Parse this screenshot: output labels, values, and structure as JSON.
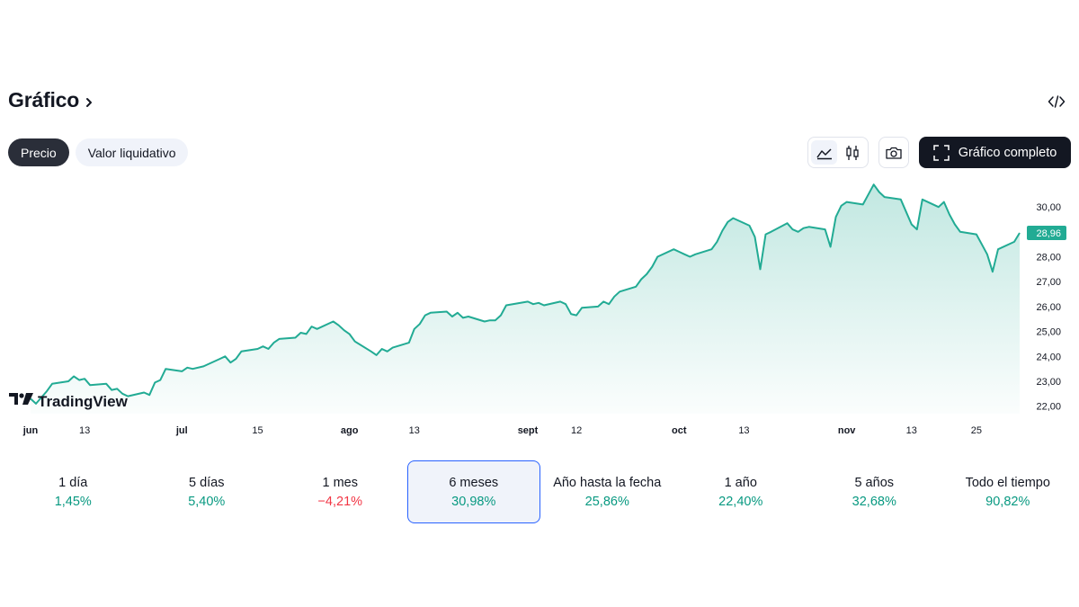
{
  "header": {
    "title": "Gráfico",
    "embed_icon": "code-icon"
  },
  "tabs": [
    {
      "label": "Precio",
      "active": true
    },
    {
      "label": "Valor liquidativo",
      "active": false
    }
  ],
  "toolbar": {
    "chart_styles": [
      "area-chart-icon",
      "candles-icon"
    ],
    "snapshot_icon": "camera-icon",
    "fullscreen_label": "Gráfico completo"
  },
  "chart_data": {
    "type": "area",
    "series_color": "#22ab94",
    "last_value": 28.96,
    "last_value_label": "28,96",
    "watermark": "TradingView",
    "ylim": [
      21.7,
      30.8
    ],
    "y_ticks": [
      {
        "value": 22,
        "label": "22,00"
      },
      {
        "value": 23,
        "label": "23,00"
      },
      {
        "value": 24,
        "label": "24,00"
      },
      {
        "value": 25,
        "label": "25,00"
      },
      {
        "value": 26,
        "label": "26,00"
      },
      {
        "value": 27,
        "label": "27,00"
      },
      {
        "value": 28,
        "label": "28,00"
      },
      {
        "value": 30,
        "label": "30,00"
      }
    ],
    "x_ticks": [
      {
        "date": "2024-06-03",
        "label": "jun",
        "month": true
      },
      {
        "date": "2024-06-13",
        "label": "13",
        "month": false
      },
      {
        "date": "2024-07-01",
        "label": "jul",
        "month": true
      },
      {
        "date": "2024-07-15",
        "label": "15",
        "month": false
      },
      {
        "date": "2024-08-01",
        "label": "ago",
        "month": true
      },
      {
        "date": "2024-08-13",
        "label": "13",
        "month": false
      },
      {
        "date": "2024-09-03",
        "label": "sept",
        "month": true
      },
      {
        "date": "2024-09-12",
        "label": "12",
        "month": false
      },
      {
        "date": "2024-10-01",
        "label": "oct",
        "month": true
      },
      {
        "date": "2024-10-13",
        "label": "13",
        "month": false
      },
      {
        "date": "2024-11-01",
        "label": "nov",
        "month": true
      },
      {
        "date": "2024-11-13",
        "label": "13",
        "month": false
      },
      {
        "date": "2024-11-25",
        "label": "25",
        "month": false
      }
    ],
    "series": [
      {
        "values": [
          [
            "2024-06-03",
            22.3
          ],
          [
            "2024-06-04",
            22.1
          ],
          [
            "2024-06-05",
            22.35
          ],
          [
            "2024-06-06",
            22.6
          ],
          [
            "2024-06-07",
            22.9
          ],
          [
            "2024-06-10",
            23.0
          ],
          [
            "2024-06-11",
            23.2
          ],
          [
            "2024-06-12",
            23.05
          ],
          [
            "2024-06-13",
            23.1
          ],
          [
            "2024-06-14",
            22.85
          ],
          [
            "2024-06-17",
            22.9
          ],
          [
            "2024-06-18",
            22.65
          ],
          [
            "2024-06-19",
            22.7
          ],
          [
            "2024-06-20",
            22.5
          ],
          [
            "2024-06-21",
            22.4
          ],
          [
            "2024-06-24",
            22.55
          ],
          [
            "2024-06-25",
            22.45
          ],
          [
            "2024-06-26",
            22.95
          ],
          [
            "2024-06-27",
            23.05
          ],
          [
            "2024-06-28",
            23.5
          ],
          [
            "2024-07-01",
            23.4
          ],
          [
            "2024-07-02",
            23.55
          ],
          [
            "2024-07-03",
            23.5
          ],
          [
            "2024-07-05",
            23.6
          ],
          [
            "2024-07-08",
            23.9
          ],
          [
            "2024-07-09",
            24.0
          ],
          [
            "2024-07-10",
            23.75
          ],
          [
            "2024-07-11",
            23.9
          ],
          [
            "2024-07-12",
            24.2
          ],
          [
            "2024-07-15",
            24.3
          ],
          [
            "2024-07-16",
            24.4
          ],
          [
            "2024-07-17",
            24.3
          ],
          [
            "2024-07-18",
            24.55
          ],
          [
            "2024-07-19",
            24.7
          ],
          [
            "2024-07-22",
            24.75
          ],
          [
            "2024-07-23",
            24.95
          ],
          [
            "2024-07-24",
            24.9
          ],
          [
            "2024-07-25",
            25.2
          ],
          [
            "2024-07-26",
            25.1
          ],
          [
            "2024-07-29",
            25.4
          ],
          [
            "2024-07-30",
            25.25
          ],
          [
            "2024-07-31",
            25.05
          ],
          [
            "2024-08-01",
            24.9
          ],
          [
            "2024-08-02",
            24.6
          ],
          [
            "2024-08-05",
            24.2
          ],
          [
            "2024-08-06",
            24.05
          ],
          [
            "2024-08-07",
            24.3
          ],
          [
            "2024-08-08",
            24.2
          ],
          [
            "2024-08-09",
            24.35
          ],
          [
            "2024-08-12",
            24.55
          ],
          [
            "2024-08-13",
            25.1
          ],
          [
            "2024-08-14",
            25.3
          ],
          [
            "2024-08-15",
            25.65
          ],
          [
            "2024-08-16",
            25.75
          ],
          [
            "2024-08-19",
            25.8
          ],
          [
            "2024-08-20",
            25.6
          ],
          [
            "2024-08-21",
            25.75
          ],
          [
            "2024-08-22",
            25.55
          ],
          [
            "2024-08-23",
            25.6
          ],
          [
            "2024-08-26",
            25.4
          ],
          [
            "2024-08-27",
            25.45
          ],
          [
            "2024-08-28",
            25.45
          ],
          [
            "2024-08-29",
            25.65
          ],
          [
            "2024-08-30",
            26.05
          ],
          [
            "2024-09-03",
            26.2
          ],
          [
            "2024-09-04",
            26.1
          ],
          [
            "2024-09-05",
            26.15
          ],
          [
            "2024-09-06",
            26.05
          ],
          [
            "2024-09-09",
            26.2
          ],
          [
            "2024-09-10",
            26.1
          ],
          [
            "2024-09-11",
            25.7
          ],
          [
            "2024-09-12",
            25.65
          ],
          [
            "2024-09-13",
            25.95
          ],
          [
            "2024-09-16",
            26.0
          ],
          [
            "2024-09-17",
            26.2
          ],
          [
            "2024-09-18",
            26.1
          ],
          [
            "2024-09-19",
            26.4
          ],
          [
            "2024-09-20",
            26.6
          ],
          [
            "2024-09-23",
            26.8
          ],
          [
            "2024-09-24",
            27.1
          ],
          [
            "2024-09-25",
            27.3
          ],
          [
            "2024-09-26",
            27.6
          ],
          [
            "2024-09-27",
            28.0
          ],
          [
            "2024-09-30",
            28.3
          ],
          [
            "2024-10-01",
            28.2
          ],
          [
            "2024-10-02",
            28.1
          ],
          [
            "2024-10-03",
            28.0
          ],
          [
            "2024-10-04",
            28.1
          ],
          [
            "2024-10-07",
            28.3
          ],
          [
            "2024-10-08",
            28.6
          ],
          [
            "2024-10-09",
            29.05
          ],
          [
            "2024-10-10",
            29.4
          ],
          [
            "2024-10-11",
            29.55
          ],
          [
            "2024-10-14",
            29.25
          ],
          [
            "2024-10-15",
            28.8
          ],
          [
            "2024-10-16",
            27.5
          ],
          [
            "2024-10-17",
            28.9
          ],
          [
            "2024-10-18",
            29.0
          ],
          [
            "2024-10-21",
            29.35
          ],
          [
            "2024-10-22",
            29.1
          ],
          [
            "2024-10-23",
            29.0
          ],
          [
            "2024-10-24",
            29.15
          ],
          [
            "2024-10-25",
            29.2
          ],
          [
            "2024-10-28",
            29.1
          ],
          [
            "2024-10-29",
            28.4
          ],
          [
            "2024-10-30",
            29.6
          ],
          [
            "2024-10-31",
            30.05
          ],
          [
            "2024-11-01",
            30.2
          ],
          [
            "2024-11-04",
            30.1
          ],
          [
            "2024-11-05",
            30.5
          ],
          [
            "2024-11-06",
            30.9
          ],
          [
            "2024-11-07",
            30.6
          ],
          [
            "2024-11-08",
            30.4
          ],
          [
            "2024-11-11",
            30.3
          ],
          [
            "2024-11-12",
            29.8
          ],
          [
            "2024-11-13",
            29.3
          ],
          [
            "2024-11-14",
            29.1
          ],
          [
            "2024-11-15",
            30.3
          ],
          [
            "2024-11-18",
            30.0
          ],
          [
            "2024-11-19",
            30.2
          ],
          [
            "2024-11-20",
            29.7
          ],
          [
            "2024-11-21",
            29.3
          ],
          [
            "2024-11-22",
            29.0
          ],
          [
            "2024-11-25",
            28.9
          ],
          [
            "2024-11-26",
            28.5
          ],
          [
            "2024-11-27",
            28.1
          ],
          [
            "2024-11-28",
            27.4
          ],
          [
            "2024-11-29",
            28.3
          ],
          [
            "2024-12-02",
            28.6
          ],
          [
            "2024-12-03",
            28.96
          ]
        ]
      }
    ]
  },
  "periods": [
    {
      "label": "1 día",
      "value": "1,45%",
      "trend": "pos",
      "selected": false
    },
    {
      "label": "5 días",
      "value": "5,40%",
      "trend": "pos",
      "selected": false
    },
    {
      "label": "1 mes",
      "value": "−4,21%",
      "trend": "neg",
      "selected": false
    },
    {
      "label": "6 meses",
      "value": "30,98%",
      "trend": "pos",
      "selected": true
    },
    {
      "label": "Año hasta la fecha",
      "value": "25,86%",
      "trend": "pos",
      "selected": false
    },
    {
      "label": "1 año",
      "value": "22,40%",
      "trend": "pos",
      "selected": false
    },
    {
      "label": "5 años",
      "value": "32,68%",
      "trend": "pos",
      "selected": false
    },
    {
      "label": "Todo el tiempo",
      "value": "90,82%",
      "trend": "pos",
      "selected": false
    }
  ]
}
